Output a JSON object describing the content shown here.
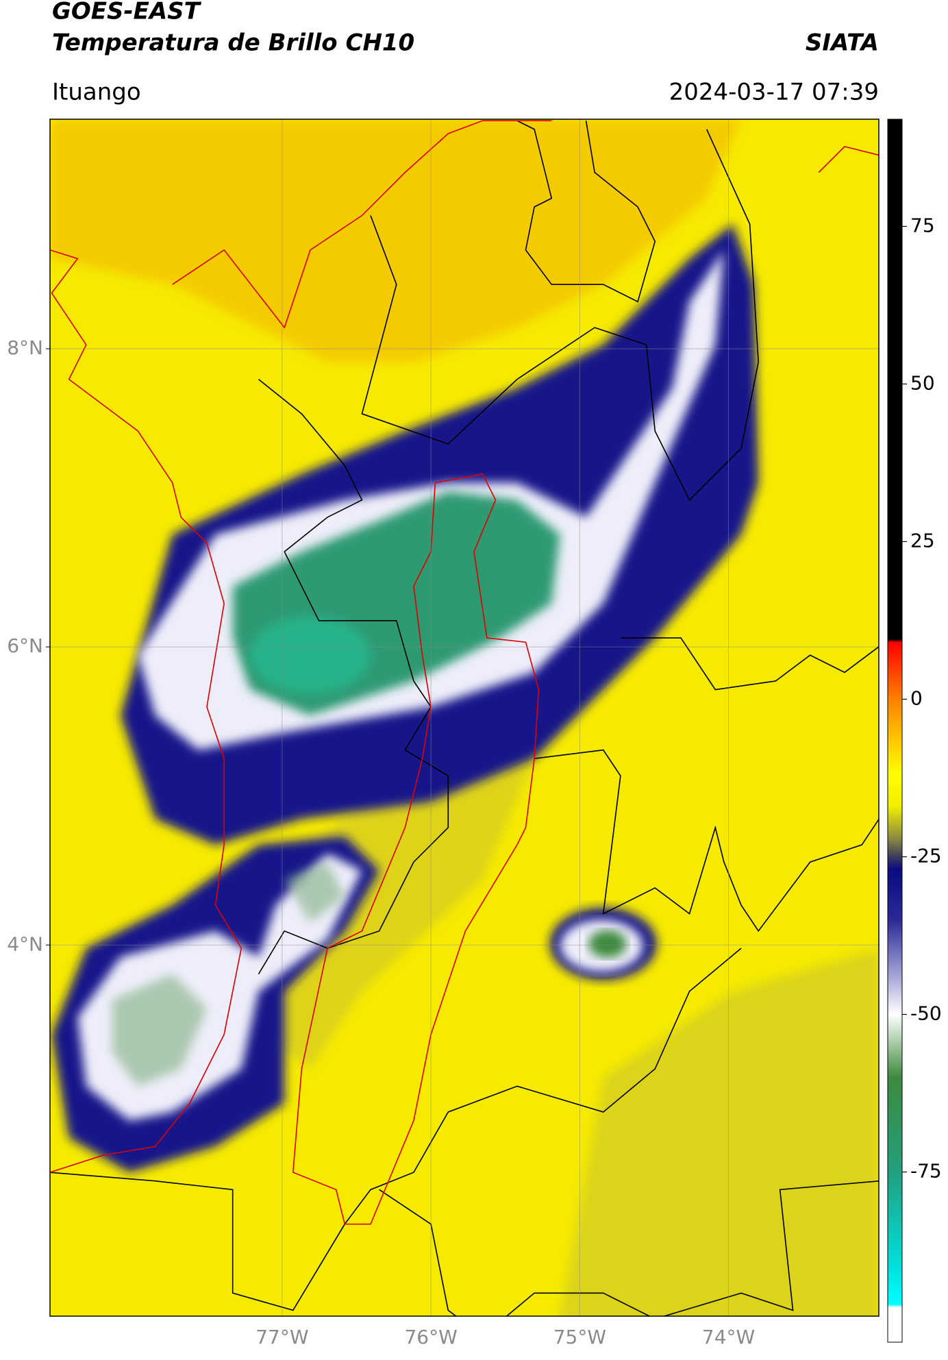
{
  "header": {
    "title": "GOES-EAST",
    "subtitle": "Temperatura de Brillo CH10",
    "source": "SIATA",
    "location": "Ituango",
    "datetime": "2024-03-17 07:39"
  },
  "map": {
    "xlim": [
      -78.56,
      -72.99
    ],
    "ylim": [
      1.51,
      9.54
    ],
    "xticks": [
      {
        "value": -77,
        "label": "77°W"
      },
      {
        "value": -76,
        "label": "76°W"
      },
      {
        "value": -75,
        "label": "75°W"
      },
      {
        "value": -74,
        "label": "74°W"
      }
    ],
    "yticks": [
      {
        "value": 4,
        "label": "4°N"
      },
      {
        "value": 6,
        "label": "6°N"
      },
      {
        "value": 8,
        "label": "8°N"
      }
    ],
    "grid": true
  },
  "colorbar": {
    "lim": [
      -102,
      92
    ],
    "ticks": [
      -75,
      -50,
      -25,
      0,
      25,
      50,
      75
    ],
    "stops": [
      {
        "value": 92,
        "color": "#000000"
      },
      {
        "value": 9.5,
        "color": "#000000"
      },
      {
        "value": 9,
        "color": "#ff0000"
      },
      {
        "value": 0,
        "color": "#ff8000"
      },
      {
        "value": -8,
        "color": "#ffd700"
      },
      {
        "value": -12,
        "color": "#ffff00"
      },
      {
        "value": -17,
        "color": "#f2ee00"
      },
      {
        "value": -22,
        "color": "#8c8c40"
      },
      {
        "value": -25,
        "color": "#3c3c5a"
      },
      {
        "value": -27,
        "color": "#0a0a82"
      },
      {
        "value": -35,
        "color": "#2a2a96"
      },
      {
        "value": -45,
        "color": "#b4b4e0"
      },
      {
        "value": -50,
        "color": "#ffffff"
      },
      {
        "value": -60,
        "color": "#3d8a3d"
      },
      {
        "value": -75,
        "color": "#22a07e"
      },
      {
        "value": -90,
        "color": "#00e0dc"
      },
      {
        "value": -96,
        "color": "#00ffff"
      },
      {
        "value": -96.5,
        "color": "#ffffff"
      },
      {
        "value": -102,
        "color": "#ffffff"
      }
    ]
  }
}
